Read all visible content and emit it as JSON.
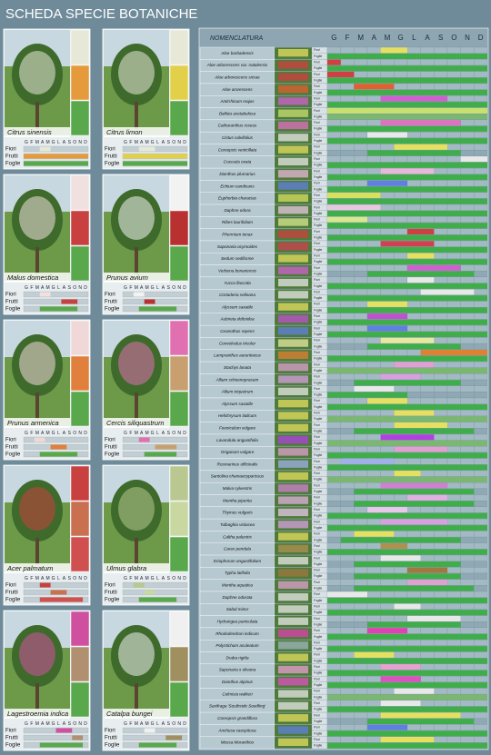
{
  "title": "SCHEDA SPECIE BOTANICHE",
  "months": [
    "G",
    "F",
    "M",
    "A",
    "M",
    "G",
    "L",
    "A",
    "S",
    "O",
    "N",
    "D"
  ],
  "card_labels": [
    "Fiori",
    "Frutti",
    "Foglie"
  ],
  "table": {
    "header": "NOMENCLATURA",
    "sub_labels": [
      "Fiori",
      "Foglie"
    ]
  },
  "trees": [
    {
      "name": "Citrus sinensis",
      "fiori": [
        3,
        4,
        "#e8e8d8"
      ],
      "frutti": [
        0,
        11,
        "#e59a3c"
      ],
      "foglie": [
        0,
        11,
        "#5aa84c"
      ]
    },
    {
      "name": "Citrus limon",
      "fiori": [
        3,
        5,
        "#e8e8d8"
      ],
      "frutti": [
        0,
        11,
        "#e3d04a"
      ],
      "foglie": [
        0,
        11,
        "#5aa84c"
      ]
    },
    {
      "name": "Malus domestica",
      "fiori": [
        3,
        4,
        "#f0e0e0"
      ],
      "frutti": [
        7,
        9,
        "#c84040"
      ],
      "foglie": [
        3,
        9,
        "#5aa84c"
      ]
    },
    {
      "name": "Prunus avium",
      "fiori": [
        2,
        3,
        "#f2f2f2"
      ],
      "frutti": [
        4,
        5,
        "#b83030"
      ],
      "foglie": [
        3,
        9,
        "#5aa84c"
      ]
    },
    {
      "name": "Prunus armenica",
      "fiori": [
        2,
        3,
        "#f0d8d8"
      ],
      "frutti": [
        5,
        7,
        "#e0803c"
      ],
      "foglie": [
        3,
        9,
        "#5aa84c"
      ]
    },
    {
      "name": "Cercis siliquastrum",
      "fiori": [
        3,
        4,
        "#e070b0"
      ],
      "frutti": [
        6,
        9,
        "#c8a070"
      ],
      "foglie": [
        4,
        9,
        "#5aa84c"
      ]
    },
    {
      "name": "Acer palmatum",
      "fiori": [
        3,
        4,
        "#c84040"
      ],
      "frutti": [
        5,
        7,
        "#c87050"
      ],
      "foglie": [
        3,
        10,
        "#d05050"
      ]
    },
    {
      "name": "Ulmus glabra",
      "fiori": [
        2,
        3,
        "#b8c890"
      ],
      "frutti": [
        4,
        5,
        "#c8d8a0"
      ],
      "foglie": [
        3,
        9,
        "#5aa84c"
      ]
    },
    {
      "name": "Lagestroemia indica",
      "fiori": [
        6,
        8,
        "#d050a0"
      ],
      "frutti": [
        9,
        10,
        "#b09070"
      ],
      "foglie": [
        3,
        10,
        "#5aa84c"
      ]
    },
    {
      "name": "Catalpa bungei",
      "fiori": [
        4,
        5,
        "#f0f0f0"
      ],
      "frutti": [
        8,
        10,
        "#a09060"
      ],
      "foglie": [
        3,
        9,
        "#5aa84c"
      ]
    }
  ],
  "species": [
    {
      "name": "Aloe barbadensis",
      "fiori": [
        4,
        5,
        "#e6e060"
      ],
      "foglie": [
        0,
        11,
        "#3fae4a"
      ]
    },
    {
      "name": "Aloe arborescens var. natalensis",
      "fiori": [
        0,
        0,
        "#d04040"
      ],
      "foglie": [
        0,
        11,
        "#3fae4a"
      ]
    },
    {
      "name": "Aloe arborescens sicrae",
      "fiori": [
        0,
        1,
        "#d04040"
      ],
      "foglie": [
        0,
        11,
        "#3fae4a"
      ]
    },
    {
      "name": "Aloe arorescens",
      "fiori": [
        2,
        4,
        "#e06030"
      ],
      "foglie": [
        0,
        11,
        "#3fae4a"
      ]
    },
    {
      "name": "Antirrhinum majus",
      "fiori": [
        4,
        8,
        "#d060d0"
      ],
      "foglie": [
        0,
        11,
        "#3fae4a"
      ]
    },
    {
      "name": "Ballota acetabulosa",
      "fiori": [
        0,
        11,
        "#c8e070"
      ],
      "foglie": [
        0,
        11,
        "#7ab870"
      ]
    },
    {
      "name": "Catharanthus roseus",
      "fiori": [
        4,
        9,
        "#e070c0"
      ],
      "foglie": [
        0,
        11,
        "#3fae4a"
      ]
    },
    {
      "name": "Cistus salvifolius",
      "fiori": [
        3,
        5,
        "#e8e8e8"
      ],
      "foglie": [
        0,
        11,
        "#3fae4a"
      ]
    },
    {
      "name": "Coreopsis verticillata",
      "fiori": [
        5,
        8,
        "#e6e060"
      ],
      "foglie": [
        3,
        9,
        "#3fae4a"
      ]
    },
    {
      "name": "Crassula ovata",
      "fiori": [
        10,
        11,
        "#e8e8e8"
      ],
      "foglie": [
        0,
        11,
        "#3fae4a"
      ]
    },
    {
      "name": "Dianthus plumarius",
      "fiori": [
        4,
        7,
        "#e8b8d8"
      ],
      "foglie": [
        0,
        11,
        "#3fae4a"
      ]
    },
    {
      "name": "Echium candicans",
      "fiori": [
        3,
        5,
        "#6080e0"
      ],
      "foglie": [
        0,
        11,
        "#3fae4a"
      ]
    },
    {
      "name": "Euphorbia characias",
      "fiori": [
        0,
        3,
        "#d8e060"
      ],
      "foglie": [
        0,
        11,
        "#3fae4a"
      ]
    },
    {
      "name": "Daphne odora",
      "fiori": [
        0,
        3,
        "#e8c8e0"
      ],
      "foglie": [
        0,
        11,
        "#3fae4a"
      ]
    },
    {
      "name": "Ribes laurifolium",
      "fiori": [
        0,
        2,
        "#d8e890"
      ],
      "foglie": [
        0,
        11,
        "#3fae4a"
      ]
    },
    {
      "name": "Phormium tenax",
      "fiori": [
        6,
        7,
        "#d04040"
      ],
      "foglie": [
        0,
        11,
        "#3fae4a"
      ]
    },
    {
      "name": "Saponaria ocymoides",
      "fiori": [
        4,
        7,
        "#d04050"
      ],
      "foglie": [
        0,
        11,
        "#3fae4a"
      ]
    },
    {
      "name": "Sedum sediforme",
      "fiori": [
        6,
        7,
        "#e6e060"
      ],
      "foglie": [
        0,
        11,
        "#3fae4a"
      ]
    },
    {
      "name": "Verbena bonariensis",
      "fiori": [
        6,
        9,
        "#d060d0"
      ],
      "foglie": [
        3,
        10,
        "#3fae4a"
      ]
    },
    {
      "name": "Yucca flaccida",
      "fiori": [
        6,
        7,
        "#e8e8e8"
      ],
      "foglie": [
        0,
        11,
        "#3fae4a"
      ]
    },
    {
      "name": "Cortaderia selloana",
      "fiori": [
        7,
        10,
        "#e8e8e8"
      ],
      "foglie": [
        0,
        11,
        "#3fae4a"
      ]
    },
    {
      "name": "Alyssum saxatile",
      "fiori": [
        3,
        5,
        "#e6e060"
      ],
      "foglie": [
        0,
        11,
        "#3fae4a"
      ]
    },
    {
      "name": "Aubrieta deltoidea",
      "fiori": [
        3,
        5,
        "#c050d0"
      ],
      "foglie": [
        0,
        11,
        "#3fae4a"
      ]
    },
    {
      "name": "Ceanothus repens",
      "fiori": [
        3,
        5,
        "#6080e0"
      ],
      "foglie": [
        0,
        11,
        "#3fae4a"
      ]
    },
    {
      "name": "Convolvulus tricolor",
      "fiori": [
        4,
        7,
        "#e8e8a0"
      ],
      "foglie": [
        3,
        9,
        "#3fae4a"
      ]
    },
    {
      "name": "Lampranthus aurantiacus",
      "fiori": [
        7,
        11,
        "#e08030"
      ],
      "foglie": [
        0,
        11,
        "#3fae4a"
      ]
    },
    {
      "name": "Stachys lanata",
      "fiori": [
        5,
        7,
        "#e0a0d0"
      ],
      "foglie": [
        0,
        11,
        "#7ab870"
      ]
    },
    {
      "name": "Allium schoenoprasum",
      "fiori": [
        4,
        6,
        "#d8a0e0"
      ],
      "foglie": [
        2,
        9,
        "#3fae4a"
      ]
    },
    {
      "name": "Allium triquetrum",
      "fiori": [
        2,
        4,
        "#e8e8e8"
      ],
      "foglie": [
        0,
        5,
        "#3fae4a"
      ]
    },
    {
      "name": "Alyssum saxatile",
      "fiori": [
        3,
        5,
        "#e6e060"
      ],
      "foglie": [
        0,
        11,
        "#3fae4a"
      ]
    },
    {
      "name": "Helichrysum italicum",
      "fiori": [
        5,
        7,
        "#e6e060"
      ],
      "foglie": [
        0,
        11,
        "#7ab870"
      ]
    },
    {
      "name": "Foeniculum vulgare",
      "fiori": [
        5,
        8,
        "#e6e060"
      ],
      "foglie": [
        2,
        10,
        "#3fae4a"
      ]
    },
    {
      "name": "Lavandula angustifolia",
      "fiori": [
        4,
        7,
        "#b040e0"
      ],
      "foglie": [
        0,
        11,
        "#7ab870"
      ]
    },
    {
      "name": "Origanum vulgare",
      "fiori": [
        5,
        8,
        "#e0a0d0"
      ],
      "foglie": [
        0,
        11,
        "#3fae4a"
      ]
    },
    {
      "name": "Rosmarinus officinalis",
      "fiori": [
        1,
        4,
        "#a0b0e8"
      ],
      "foglie": [
        0,
        11,
        "#3fae4a"
      ]
    },
    {
      "name": "Santolina chamaecyparissus",
      "fiori": [
        5,
        6,
        "#e6e060"
      ],
      "foglie": [
        0,
        11,
        "#7ab870"
      ]
    },
    {
      "name": "Malva sylvestris",
      "fiori": [
        4,
        8,
        "#d080d0"
      ],
      "foglie": [
        2,
        10,
        "#3fae4a"
      ]
    },
    {
      "name": "Mentha piperita",
      "fiori": [
        6,
        8,
        "#e0b0e0"
      ],
      "foglie": [
        2,
        10,
        "#3fae4a"
      ]
    },
    {
      "name": "Thymus vulgaris",
      "fiori": [
        3,
        5,
        "#e8c8e8"
      ],
      "foglie": [
        0,
        11,
        "#3fae4a"
      ]
    },
    {
      "name": "Tulbaghia violacea",
      "fiori": [
        4,
        8,
        "#d8a0e0"
      ],
      "foglie": [
        0,
        11,
        "#3fae4a"
      ]
    },
    {
      "name": "Caltha palustris",
      "fiori": [
        2,
        4,
        "#e6e060"
      ],
      "foglie": [
        1,
        9,
        "#3fae4a"
      ]
    },
    {
      "name": "Carex pendula",
      "fiori": [
        4,
        5,
        "#b09050"
      ],
      "foglie": [
        0,
        11,
        "#3fae4a"
      ]
    },
    {
      "name": "Eriophorum angustifolium",
      "fiori": [
        4,
        6,
        "#e8e8e8"
      ],
      "foglie": [
        2,
        9,
        "#3fae4a"
      ]
    },
    {
      "name": "Typha latifolia",
      "fiori": [
        6,
        8,
        "#a07840"
      ],
      "foglie": [
        2,
        9,
        "#3fae4a"
      ]
    },
    {
      "name": "Mentha aquatica",
      "fiori": [
        6,
        8,
        "#e0a0d0"
      ],
      "foglie": [
        2,
        10,
        "#3fae4a"
      ]
    },
    {
      "name": "Daphne odorata",
      "fiori": [
        0,
        2,
        "#e8e8e8"
      ],
      "foglie": [
        0,
        11,
        "#3fae4a"
      ]
    },
    {
      "name": "Sabal minor",
      "fiori": [
        5,
        6,
        "#e8e8e8"
      ],
      "foglie": [
        0,
        11,
        "#3fae4a"
      ]
    },
    {
      "name": "Hydrangea paniculata",
      "fiori": [
        6,
        9,
        "#e8e8e8"
      ],
      "foglie": [
        3,
        9,
        "#3fae4a"
      ]
    },
    {
      "name": "Rhododendron indicum",
      "fiori": [
        3,
        5,
        "#e040b0"
      ],
      "foglie": [
        0,
        11,
        "#3fae4a"
      ]
    },
    {
      "name": "Polystichum aculeatum",
      "fiori": [
        0,
        0,
        "#9fb5bf"
      ],
      "foglie": [
        0,
        11,
        "#3fae4a"
      ]
    },
    {
      "name": "Draba rigida",
      "fiori": [
        2,
        4,
        "#e6e060"
      ],
      "foglie": [
        0,
        11,
        "#3fae4a"
      ]
    },
    {
      "name": "Saponaria x olivana",
      "fiori": [
        4,
        6,
        "#e8a0d0"
      ],
      "foglie": [
        0,
        11,
        "#3fae4a"
      ]
    },
    {
      "name": "Dianthus alpinus",
      "fiori": [
        4,
        6,
        "#e050c0"
      ],
      "foglie": [
        0,
        11,
        "#3fae4a"
      ]
    },
    {
      "name": "Celmisia walkeri",
      "fiori": [
        5,
        7,
        "#e8e8e8"
      ],
      "foglie": [
        0,
        11,
        "#7ab870"
      ]
    },
    {
      "name": "Saxifraga 'Southside Seedling'",
      "fiori": [
        4,
        6,
        "#e8e8e8"
      ],
      "foglie": [
        0,
        11,
        "#3fae4a"
      ]
    },
    {
      "name": "Coreopsis grandiflora",
      "fiori": [
        4,
        9,
        "#e6e060"
      ],
      "foglie": [
        3,
        10,
        "#3fae4a"
      ]
    },
    {
      "name": "Anchusa caespitosa",
      "fiori": [
        3,
        5,
        "#6080e0"
      ],
      "foglie": [
        0,
        11,
        "#3fae4a"
      ]
    },
    {
      "name": "Mossa Moranthos",
      "fiori": [
        4,
        7,
        "#e6e060"
      ],
      "foglie": [
        0,
        11,
        "#3fae4a"
      ]
    }
  ]
}
